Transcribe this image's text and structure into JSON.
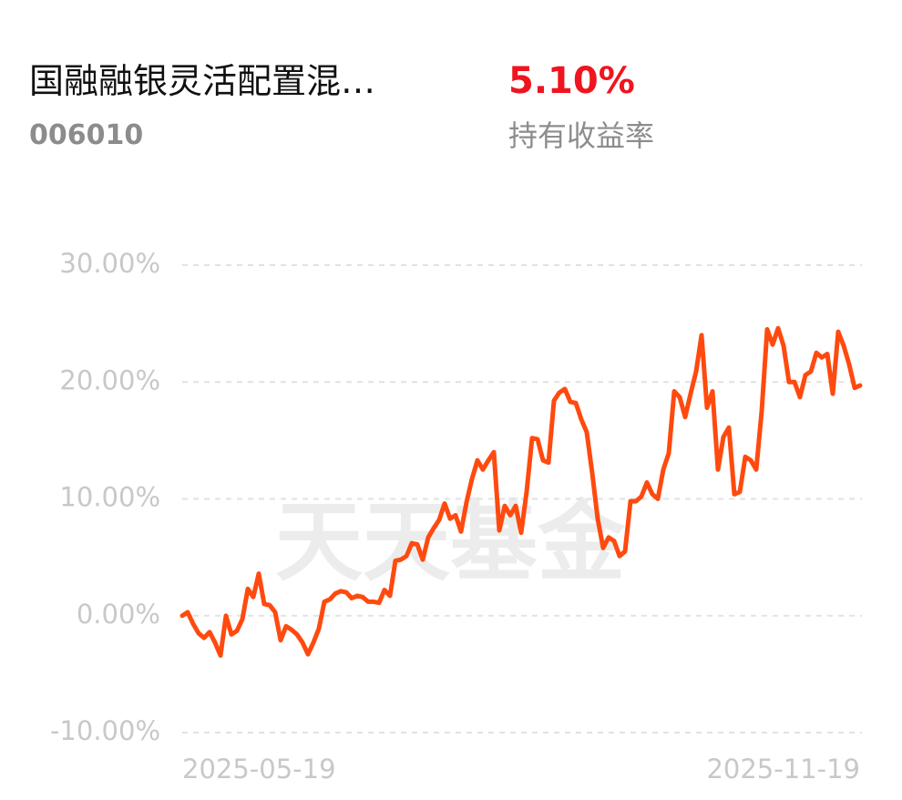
{
  "chart_data": {
    "type": "line",
    "title": "国融融银灵活配置混…",
    "subtitle": "006010",
    "annotations": [
      "5.10%",
      "持有收益率"
    ],
    "watermark": "天天基金",
    "categories": [
      "2025-05-19",
      null,
      null,
      null,
      null,
      null,
      null,
      null,
      null,
      null,
      null,
      null,
      null,
      null,
      null,
      null,
      null,
      null,
      null,
      null,
      null,
      null,
      null,
      null,
      null,
      null,
      null,
      null,
      null,
      null,
      null,
      null,
      null,
      null,
      null,
      null,
      null,
      null,
      null,
      null,
      null,
      null,
      null,
      null,
      null,
      null,
      null,
      null,
      null,
      null,
      null,
      null,
      null,
      null,
      null,
      null,
      null,
      null,
      null,
      null,
      null,
      null,
      null,
      null,
      null,
      null,
      null,
      null,
      null,
      null,
      null,
      null,
      null,
      null,
      null,
      null,
      null,
      null,
      null,
      null,
      null,
      null,
      null,
      null,
      null,
      null,
      null,
      null,
      null,
      null,
      null,
      null,
      null,
      null,
      null,
      null,
      null,
      null,
      null,
      null,
      null,
      null,
      null,
      null,
      null,
      null,
      null,
      null,
      null,
      null,
      null,
      null,
      null,
      null,
      null,
      null,
      null,
      null,
      null,
      null,
      null,
      null,
      null,
      null,
      "2025-11-19"
    ],
    "series": [
      {
        "color": "#ff4a0f",
        "values": [
          0,
          0.3,
          -0.7,
          -1.5,
          -1.9,
          -1.4,
          -2.3,
          -3.4,
          0,
          -1.6,
          -1.3,
          -0.3,
          2.3,
          1.6,
          3.6,
          1.0,
          0.9,
          0.3,
          -2.1,
          -0.9,
          -1.2,
          -1.6,
          -2.3,
          -3.3,
          -2.3,
          -1.1,
          1.2,
          1.4,
          1.9,
          2.1,
          2.0,
          1.5,
          1.7,
          1.6,
          1.2,
          1.2,
          1.1,
          2.2,
          1.7,
          4.7,
          4.8,
          5.1,
          6.2,
          6.1,
          4.8,
          6.7,
          7.5,
          8.2,
          9.6,
          8.3,
          8.6,
          7.2,
          9.7,
          11.7,
          13.3,
          12.5,
          13.3,
          14.0,
          7.3,
          9.4,
          8.6,
          9.4,
          7.1,
          10.6,
          15.2,
          15.1,
          13.3,
          13.1,
          18.4,
          19.1,
          19.4,
          18.3,
          18.2,
          16.8,
          15.7,
          12.2,
          8.3,
          5.8,
          6.7,
          6.4,
          5.1,
          5.5,
          9.8,
          9.8,
          10.2,
          11.4,
          10.4,
          10.0,
          12.5,
          13.9,
          19.2,
          18.7,
          17.0,
          19.0,
          20.9,
          24.0,
          17.8,
          19.2,
          12.5,
          15.3,
          16.1,
          10.4,
          10.6,
          13.6,
          13.3,
          12.5,
          17.5,
          24.5,
          23.2,
          24.6,
          23.1,
          20.0,
          20.0,
          18.7,
          20.6,
          20.9,
          22.5,
          22.1,
          22.4,
          19.0,
          24.3,
          23.1,
          21.5,
          19.5,
          19.7
        ]
      }
    ],
    "ylim": [
      -10,
      30
    ],
    "yticks": [
      {
        "value": 30,
        "label": "30.00%"
      },
      {
        "value": 20,
        "label": "20.00%"
      },
      {
        "value": 10,
        "label": "10.00%"
      },
      {
        "value": 0,
        "label": "0.00%"
      },
      {
        "value": -10,
        "label": "-10.00%"
      }
    ],
    "grid": true
  }
}
